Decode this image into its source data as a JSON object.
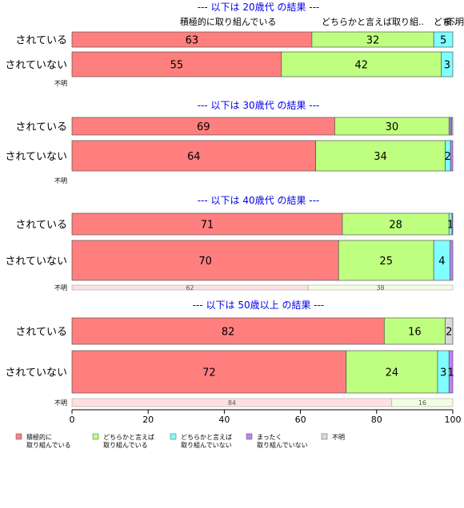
{
  "chart_data": {
    "type": "bar",
    "orientation": "horizontal",
    "stacked": true,
    "xlim": [
      0,
      100
    ],
    "x_ticks": [
      "0",
      "20",
      "40",
      "60",
      "80",
      "100"
    ],
    "legend": [
      {
        "key": "active",
        "label": "積極的に\n取り組んでいる",
        "color": "#FF7F7F"
      },
      {
        "key": "somewhat_active",
        "label": "どちらかと言えば\n取り組んでいる",
        "color": "#BFFF7F"
      },
      {
        "key": "somewhat_not",
        "label": "どちらかと言えば\n取り組んでいない",
        "color": "#7FFFFF"
      },
      {
        "key": "not_at_all",
        "label": "まったく\n取り組んでいない",
        "color": "#BF7FFF"
      },
      {
        "key": "unknown",
        "label": "不明",
        "color": "#D9D9D9"
      }
    ],
    "panels": [
      {
        "title": "--- 以下は 20歳代 の結果 ---",
        "top_labels": [
          {
            "text": "積極的に取り組んでいる",
            "x": 41
          },
          {
            "text": "どちらかと言えば取り組..",
            "x": 79
          },
          {
            "text": "どち..",
            "x": 98
          },
          {
            "text": "ま..",
            "x": 99.2
          },
          {
            "text": "不明",
            "x": 100
          }
        ],
        "rows": [
          {
            "label": "されている",
            "values": [
              63,
              32,
              5,
              0,
              0
            ],
            "labels": [
              "63",
              "32",
              "5",
              "",
              ""
            ]
          },
          {
            "label": "されていない",
            "values": [
              55,
              42,
              3,
              0,
              0
            ],
            "labels": [
              "55",
              "42",
              "3",
              "",
              ""
            ]
          },
          {
            "label": "不明",
            "values": [],
            "labels": []
          }
        ]
      },
      {
        "title": "--- 以下は 30歳代 の結果 ---",
        "top_labels": [],
        "rows": [
          {
            "label": "されている",
            "values": [
              69,
              30,
              0.3,
              0.4,
              0.3
            ],
            "labels": [
              "69",
              "30",
              "",
              "",
              ""
            ]
          },
          {
            "label": "されていない",
            "values": [
              64,
              34,
              1.4,
              0.6,
              0
            ],
            "labels": [
              "64",
              "34",
              "2",
              "",
              ""
            ]
          },
          {
            "label": "不明",
            "values": [],
            "labels": []
          }
        ]
      },
      {
        "title": "--- 以下は 40歳代 の結果 ---",
        "top_labels": [],
        "rows": [
          {
            "label": "されている",
            "values": [
              71,
              28,
              0.8,
              0.2,
              0
            ],
            "labels": [
              "71",
              "28",
              "1",
              "",
              ""
            ]
          },
          {
            "label": "されていない",
            "values": [
              70,
              25,
              4.3,
              0.7,
              0
            ],
            "labels": [
              "70",
              "25",
              "4",
              "",
              ""
            ]
          },
          {
            "label": "不明",
            "values": [
              62,
              38,
              0,
              0,
              0
            ],
            "labels": [
              "62",
              "38",
              "",
              "",
              ""
            ]
          }
        ]
      },
      {
        "title": "--- 以下は 50歳以上 の結果 ---",
        "top_labels": [],
        "rows": [
          {
            "label": "されている",
            "values": [
              82,
              16,
              0,
              0,
              2
            ],
            "labels": [
              "82",
              "16",
              "",
              "",
              "2"
            ]
          },
          {
            "label": "されていない",
            "values": [
              72,
              24,
              3,
              1,
              0
            ],
            "labels": [
              "72",
              "24",
              "3",
              "1",
              ""
            ]
          },
          {
            "label": "不明",
            "values": [
              84,
              16,
              0,
              0,
              0
            ],
            "labels": [
              "84",
              "16",
              "",
              "",
              ""
            ]
          }
        ]
      }
    ]
  }
}
